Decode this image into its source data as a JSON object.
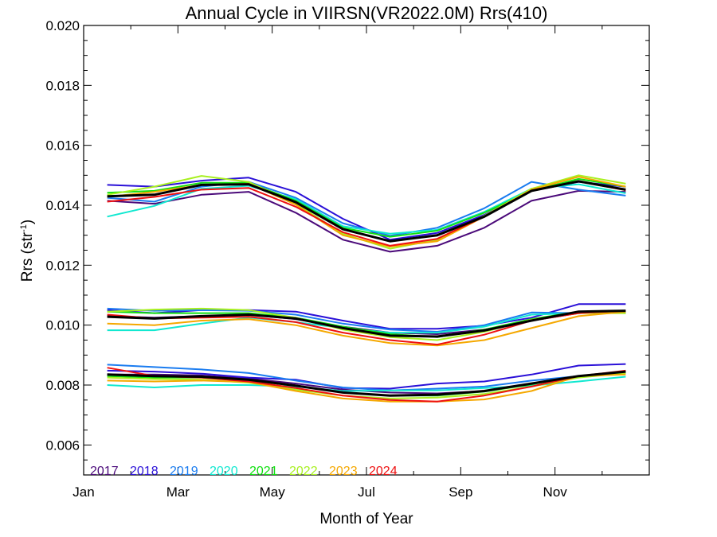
{
  "chart_data": {
    "type": "line",
    "title": "Annual Cycle in VIIRSN(VR2022.0M) Rrs(410)",
    "xlabel": "Month of Year",
    "ylabel_main": "Rrs (str",
    "ylabel_sup": "-1",
    "ylabel_close": ")",
    "xlim": [
      0.5,
      12.5
    ],
    "ylim": [
      0.005,
      0.02
    ],
    "x_ticks": [
      {
        "value": 0.5,
        "label": "Jan"
      },
      {
        "value": 2.5,
        "label": "Mar"
      },
      {
        "value": 4.5,
        "label": "May"
      },
      {
        "value": 6.5,
        "label": "Jul"
      },
      {
        "value": 8.5,
        "label": "Sep"
      },
      {
        "value": 10.5,
        "label": "Nov"
      }
    ],
    "y_ticks": [
      {
        "value": 0.006,
        "label": "0.006"
      },
      {
        "value": 0.008,
        "label": "0.008"
      },
      {
        "value": 0.01,
        "label": "0.010"
      },
      {
        "value": 0.012,
        "label": "0.012"
      },
      {
        "value": 0.014,
        "label": "0.014"
      },
      {
        "value": 0.016,
        "label": "0.016"
      },
      {
        "value": 0.018,
        "label": "0.018"
      },
      {
        "value": 0.02,
        "label": "0.020"
      }
    ],
    "x": [
      1,
      2,
      3,
      4,
      5,
      6,
      7,
      8,
      9,
      10,
      11,
      12
    ],
    "legend": [
      {
        "label": "2017",
        "color": "#4b0a7a"
      },
      {
        "label": "2018",
        "color": "#2a10d8"
      },
      {
        "label": "2019",
        "color": "#1a7cf0"
      },
      {
        "label": "2020",
        "color": "#10e8d0"
      },
      {
        "label": "2021",
        "color": "#10e010"
      },
      {
        "label": "2022",
        "color": "#a8f020"
      },
      {
        "label": "2023",
        "color": "#f5a800"
      },
      {
        "label": "2024",
        "color": "#ee1010"
      }
    ],
    "groups": [
      {
        "series": [
          {
            "year": "2017",
            "color": "#4b0a7a",
            "values": [
              0.01415,
              0.01405,
              0.01435,
              0.01445,
              0.01375,
              0.01285,
              0.01245,
              0.01265,
              0.01325,
              0.01415,
              0.01448,
              0.01445
            ]
          },
          {
            "year": "2018",
            "color": "#2a10d8",
            "values": [
              0.01468,
              0.01462,
              0.01482,
              0.01492,
              0.01445,
              0.01355,
              0.01285,
              0.01308,
              0.01368,
              0.01448,
              0.01478,
              0.01462
            ]
          },
          {
            "year": "2019",
            "color": "#1a7cf0",
            "values": [
              0.01425,
              0.01412,
              0.01462,
              0.01478,
              0.01425,
              0.0134,
              0.01298,
              0.01325,
              0.0139,
              0.01478,
              0.01452,
              0.01432
            ]
          },
          {
            "year": "2020",
            "color": "#10e8d0",
            "values": [
              0.01362,
              0.01398,
              0.01455,
              0.01465,
              0.0142,
              0.0133,
              0.01305,
              0.01318,
              0.01378,
              0.01455,
              0.0147,
              0.0144
            ]
          },
          {
            "year": "2021",
            "color": "#10e010",
            "values": [
              0.01442,
              0.01448,
              0.01475,
              0.01475,
              0.01415,
              0.01325,
              0.01295,
              0.01315,
              0.01375,
              0.01448,
              0.01488,
              0.01462
            ]
          },
          {
            "year": "2022",
            "color": "#a8f020",
            "values": [
              0.01435,
              0.01462,
              0.01498,
              0.01478,
              0.01405,
              0.01305,
              0.01255,
              0.01285,
              0.01365,
              0.01455,
              0.015,
              0.01472
            ]
          },
          {
            "year": "2023",
            "color": "#f5a800",
            "values": [
              0.01428,
              0.01445,
              0.01468,
              0.01472,
              0.01402,
              0.013,
              0.01262,
              0.0128,
              0.01362,
              0.01452,
              0.01495,
              0.01462
            ]
          },
          {
            "year": "2024",
            "color": "#ee1010",
            "values": [
              0.01412,
              0.01428,
              0.01452,
              0.01458,
              0.01395,
              0.0131,
              0.01265,
              0.01288,
              0.01362,
              0.01448,
              0.0148,
              0.0145
            ]
          },
          {
            "year": "mean",
            "color": "#000000",
            "values": [
              0.0143,
              0.01435,
              0.01468,
              0.0147,
              0.0141,
              0.0132,
              0.0128,
              0.013,
              0.01362,
              0.01448,
              0.0148,
              0.01452
            ]
          }
        ]
      },
      {
        "series": [
          {
            "year": "2017",
            "color": "#4b0a7a",
            "values": [
              0.0103,
              0.01025,
              0.0103,
              0.01035,
              0.0102,
              0.00995,
              0.00975,
              0.0097,
              0.00985,
              0.01015,
              0.0104,
              0.01045
            ]
          },
          {
            "year": "2018",
            "color": "#2a10d8",
            "values": [
              0.0105,
              0.0104,
              0.0105,
              0.0105,
              0.01045,
              0.01015,
              0.00988,
              0.00988,
              0.00998,
              0.01025,
              0.0107,
              0.0107
            ]
          },
          {
            "year": "2019",
            "color": "#1a7cf0",
            "values": [
              0.01055,
              0.01048,
              0.0105,
              0.01048,
              0.01035,
              0.01005,
              0.00985,
              0.00978,
              0.01,
              0.01042,
              0.0104,
              0.01045
            ]
          },
          {
            "year": "2020",
            "color": "#10e8d0",
            "values": [
              0.00983,
              0.00983,
              0.01005,
              0.01025,
              0.0101,
              0.0099,
              0.00975,
              0.00975,
              0.00995,
              0.01035,
              0.0104,
              0.01045
            ]
          },
          {
            "year": "2021",
            "color": "#10e010",
            "values": [
              0.01045,
              0.0104,
              0.0104,
              0.0104,
              0.01025,
              0.00995,
              0.0097,
              0.0096,
              0.00985,
              0.0102,
              0.01045,
              0.0104
            ]
          },
          {
            "year": "2022",
            "color": "#a8f020",
            "values": [
              0.01045,
              0.01052,
              0.01055,
              0.0105,
              0.01025,
              0.00985,
              0.0096,
              0.0095,
              0.00978,
              0.01018,
              0.0104,
              0.0104
            ]
          },
          {
            "year": "2023",
            "color": "#f5a800",
            "values": [
              0.01005,
              0.01,
              0.01015,
              0.0102,
              0.01,
              0.00965,
              0.0094,
              0.00932,
              0.0095,
              0.0099,
              0.0103,
              0.01045
            ]
          },
          {
            "year": "2024",
            "color": "#ee1010",
            "values": [
              0.01035,
              0.01022,
              0.01025,
              0.01028,
              0.0101,
              0.00975,
              0.0095,
              0.00935,
              0.00968,
              0.01015,
              0.0104,
              0.01048
            ]
          },
          {
            "year": "mean",
            "color": "#000000",
            "values": [
              0.01028,
              0.01022,
              0.0103,
              0.01035,
              0.01022,
              0.0099,
              0.00965,
              0.00962,
              0.00982,
              0.01015,
              0.01045,
              0.01048
            ]
          }
        ]
      },
      {
        "series": [
          {
            "year": "2017",
            "color": "#4b0a7a",
            "values": [
              0.00835,
              0.00835,
              0.00832,
              0.00822,
              0.00805,
              0.00785,
              0.00775,
              0.00772,
              0.0078,
              0.00805,
              0.0083,
              0.00845
            ]
          },
          {
            "year": "2018",
            "color": "#2a10d8",
            "values": [
              0.00848,
              0.00845,
              0.00838,
              0.00825,
              0.00818,
              0.0079,
              0.00788,
              0.00805,
              0.00812,
              0.00835,
              0.00865,
              0.0087
            ]
          },
          {
            "year": "2019",
            "color": "#1a7cf0",
            "values": [
              0.00868,
              0.0086,
              0.00852,
              0.0084,
              0.00815,
              0.00792,
              0.00782,
              0.00788,
              0.00795,
              0.00815,
              0.0083,
              0.0084
            ]
          },
          {
            "year": "2020",
            "color": "#10e8d0",
            "values": [
              0.008,
              0.00792,
              0.008,
              0.008,
              0.00795,
              0.0078,
              0.00782,
              0.00782,
              0.0079,
              0.00798,
              0.00812,
              0.00828
            ]
          },
          {
            "year": "2021",
            "color": "#10e010",
            "values": [
              0.0083,
              0.00825,
              0.00825,
              0.00815,
              0.00798,
              0.00775,
              0.00765,
              0.00765,
              0.00778,
              0.00802,
              0.0083,
              0.00845
            ]
          },
          {
            "year": "2022",
            "color": "#a8f020",
            "values": [
              0.00825,
              0.0082,
              0.00818,
              0.00808,
              0.00785,
              0.00765,
              0.00755,
              0.00758,
              0.0077,
              0.00795,
              0.00825,
              0.0084
            ]
          },
          {
            "year": "2023",
            "color": "#f5a800",
            "values": [
              0.00815,
              0.00812,
              0.00815,
              0.0081,
              0.0078,
              0.00755,
              0.00745,
              0.00745,
              0.00752,
              0.0078,
              0.0083,
              0.00835
            ]
          },
          {
            "year": "2024",
            "color": "#ee1010",
            "values": [
              0.00858,
              0.0083,
              0.00825,
              0.00812,
              0.0079,
              0.00765,
              0.0075,
              0.00745,
              0.00765,
              0.00795,
              0.0083,
              0.00848
            ]
          },
          {
            "year": "mean",
            "color": "#000000",
            "values": [
              0.00835,
              0.0083,
              0.00828,
              0.00818,
              0.00798,
              0.00775,
              0.00765,
              0.00768,
              0.0078,
              0.00805,
              0.0083,
              0.00845
            ]
          }
        ]
      }
    ]
  }
}
